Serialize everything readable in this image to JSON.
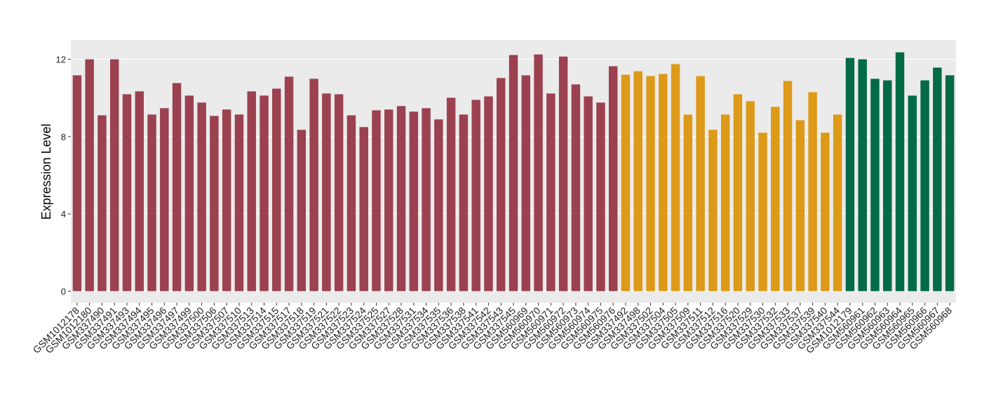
{
  "chart_data": {
    "type": "bar",
    "y_label": "Expression Level",
    "categories": [
      "GSM1012178",
      "GSM1012180",
      "GSM337490",
      "GSM337491",
      "GSM337493",
      "GSM337494",
      "GSM337495",
      "GSM337496",
      "GSM337497",
      "GSM337499",
      "GSM337500",
      "GSM337506",
      "GSM337507",
      "GSM337510",
      "GSM337513",
      "GSM337514",
      "GSM337515",
      "GSM337517",
      "GSM337518",
      "GSM337519",
      "GSM337521",
      "GSM337522",
      "GSM337523",
      "GSM337524",
      "GSM337525",
      "GSM337527",
      "GSM337528",
      "GSM337531",
      "GSM337534",
      "GSM337535",
      "GSM337536",
      "GSM337538",
      "GSM337541",
      "GSM337542",
      "GSM337543",
      "GSM337545",
      "GSM560969",
      "GSM560970",
      "GSM560971",
      "GSM560972",
      "GSM560973",
      "GSM560974",
      "GSM560975",
      "GSM560976",
      "GSM337492",
      "GSM337498",
      "GSM337502",
      "GSM337504",
      "GSM337505",
      "GSM337509",
      "GSM337511",
      "GSM337512",
      "GSM337516",
      "GSM337520",
      "GSM337529",
      "GSM337530",
      "GSM337532",
      "GSM337533",
      "GSM337537",
      "GSM337539",
      "GSM337540",
      "GSM337544",
      "GSM1012179",
      "GSM560961",
      "GSM560962",
      "GSM560963",
      "GSM560964",
      "GSM560965",
      "GSM560966",
      "GSM560967",
      "GSM560968"
    ],
    "values": [
      11.17,
      12.0,
      9.1,
      12.0,
      10.19,
      10.34,
      9.14,
      9.47,
      10.77,
      10.12,
      9.76,
      9.07,
      9.4,
      9.14,
      10.34,
      10.12,
      10.48,
      11.1,
      8.35,
      10.99,
      10.23,
      10.19,
      9.1,
      8.49,
      9.36,
      9.4,
      9.58,
      9.29,
      9.47,
      8.89,
      10.01,
      9.14,
      9.9,
      10.08,
      11.03,
      12.22,
      11.17,
      12.25,
      10.23,
      12.14,
      10.7,
      10.08,
      9.76,
      11.64,
      11.2,
      11.38,
      11.13,
      11.24,
      11.75,
      9.14,
      11.13,
      8.35,
      9.14,
      10.19,
      9.83,
      8.2,
      9.54,
      10.88,
      8.85,
      10.3,
      8.2,
      9.14,
      12.07,
      12.0,
      10.99,
      10.91,
      12.36,
      10.12,
      10.91,
      11.57,
      11.17
    ],
    "colors": [
      "#9b4150",
      "#9b4150",
      "#9b4150",
      "#9b4150",
      "#9b4150",
      "#9b4150",
      "#9b4150",
      "#9b4150",
      "#9b4150",
      "#9b4150",
      "#9b4150",
      "#9b4150",
      "#9b4150",
      "#9b4150",
      "#9b4150",
      "#9b4150",
      "#9b4150",
      "#9b4150",
      "#9b4150",
      "#9b4150",
      "#9b4150",
      "#9b4150",
      "#9b4150",
      "#9b4150",
      "#9b4150",
      "#9b4150",
      "#9b4150",
      "#9b4150",
      "#9b4150",
      "#9b4150",
      "#9b4150",
      "#9b4150",
      "#9b4150",
      "#9b4150",
      "#9b4150",
      "#9b4150",
      "#9b4150",
      "#9b4150",
      "#9b4150",
      "#9b4150",
      "#9b4150",
      "#9b4150",
      "#9b4150",
      "#9b4150",
      "#dc9a18",
      "#dc9a18",
      "#dc9a18",
      "#dc9a18",
      "#dc9a18",
      "#dc9a18",
      "#dc9a18",
      "#dc9a18",
      "#dc9a18",
      "#dc9a18",
      "#dc9a18",
      "#dc9a18",
      "#dc9a18",
      "#dc9a18",
      "#dc9a18",
      "#dc9a18",
      "#dc9a18",
      "#dc9a18",
      "#036b45",
      "#036b45",
      "#036b45",
      "#036b45",
      "#036b45",
      "#036b45",
      "#036b45",
      "#036b45",
      "#036b45"
    ],
    "ylim": [
      -0.6,
      13.0
    ],
    "yticks": [
      0,
      4,
      8,
      12
    ],
    "grid": true
  }
}
